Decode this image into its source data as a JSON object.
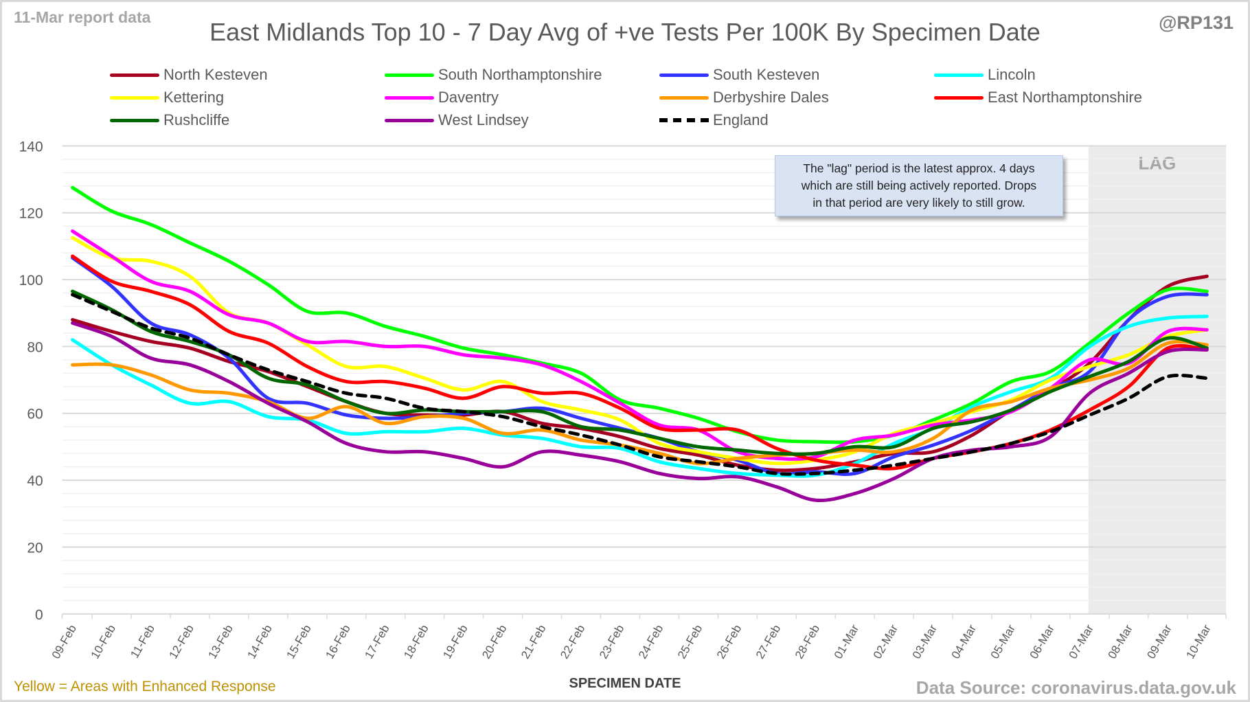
{
  "header": {
    "report_date": "11-Mar report data",
    "title": "East Midlands Top 10 - 7 Day Avg of +ve Tests Per 100K By Specimen Date",
    "handle": "@RP131"
  },
  "note": {
    "lines": [
      "The \"lag\" period is the latest approx. 4 days",
      "which are still being actively reported.  Drops",
      "in that period are very likely to still grow."
    ]
  },
  "footer": {
    "left": "Yellow = Areas with Enhanced Response",
    "center": "SPECIMEN DATE",
    "right": "Data Source: coronavirus.data.gov.uk"
  },
  "chart_data": {
    "type": "line",
    "title": "East Midlands Top 10 - 7 Day Avg of +ve Tests Per 100K By Specimen Date",
    "xlabel": "SPECIMEN DATE",
    "ylabel": "",
    "ylim": [
      0,
      140
    ],
    "yticks": [
      0,
      20,
      40,
      60,
      80,
      100,
      120,
      140
    ],
    "grid": true,
    "legend_position": "top",
    "lag_region": {
      "label": "LAG",
      "from": "07-Mar",
      "to": "10-Mar"
    },
    "x": [
      "09-Feb",
      "10-Feb",
      "11-Feb",
      "12-Feb",
      "13-Feb",
      "14-Feb",
      "15-Feb",
      "16-Feb",
      "17-Feb",
      "18-Feb",
      "19-Feb",
      "20-Feb",
      "21-Feb",
      "22-Feb",
      "23-Feb",
      "24-Feb",
      "25-Feb",
      "26-Feb",
      "27-Feb",
      "28-Feb",
      "01-Mar",
      "02-Mar",
      "03-Mar",
      "04-Mar",
      "05-Mar",
      "06-Mar",
      "07-Mar",
      "08-Mar",
      "09-Mar",
      "10-Mar"
    ],
    "series": [
      {
        "name": "North Kesteven",
        "color": "#a50021",
        "dashed": false,
        "values": [
          88,
          84.5,
          81.5,
          79.5,
          75.5,
          72.5,
          68,
          63.5,
          60,
          59.5,
          59.5,
          60.5,
          57,
          55.5,
          53,
          49.5,
          47.5,
          44.5,
          43,
          43.5,
          45.5,
          48,
          48.5,
          53.5,
          61,
          67,
          75,
          88,
          98,
          101
        ]
      },
      {
        "name": "South Northamptonshire",
        "color": "#00ff00",
        "dashed": false,
        "values": [
          127.5,
          120.5,
          116.5,
          111,
          105.5,
          98.5,
          90.5,
          90,
          86,
          83,
          79.5,
          77.5,
          75,
          72,
          64,
          61.5,
          58.5,
          54.5,
          52,
          51.5,
          51.5,
          53.5,
          58,
          63,
          69.5,
          72.5,
          81,
          90,
          97,
          96.5
        ]
      },
      {
        "name": "South Kesteven",
        "color": "#3333ff",
        "dashed": false,
        "values": [
          106.5,
          98,
          87,
          83.5,
          76.5,
          64.5,
          63,
          59.5,
          58.5,
          59,
          60,
          60.5,
          61.5,
          58.5,
          55.5,
          52.5,
          48.5,
          46,
          42,
          42.5,
          42,
          47,
          50.5,
          55,
          61,
          67.5,
          72.5,
          88,
          95,
          95.5
        ]
      },
      {
        "name": "Lincoln",
        "color": "#00ffff",
        "dashed": false,
        "values": [
          82,
          74.5,
          68.5,
          63,
          63.5,
          59,
          58,
          54,
          54.5,
          54.5,
          55.5,
          53.5,
          52.5,
          50,
          49.5,
          45.5,
          43.5,
          42,
          41.5,
          41.5,
          45,
          51,
          55.5,
          62,
          66.5,
          70.5,
          80,
          86,
          88.5,
          89
        ]
      },
      {
        "name": "Kettering",
        "color": "#ffff00",
        "dashed": false,
        "values": [
          112.5,
          106.5,
          105.5,
          101,
          90,
          87,
          80.5,
          74,
          74,
          70.5,
          67,
          69.5,
          63.5,
          61,
          58,
          51,
          48.5,
          46.5,
          45,
          46,
          48.5,
          54,
          57,
          60.5,
          64,
          70,
          74,
          77.5,
          83,
          85
        ]
      },
      {
        "name": "Daventry",
        "color": "#ff00ff",
        "dashed": false,
        "values": [
          114.5,
          107,
          99.5,
          96.5,
          89.5,
          87,
          81.5,
          81.5,
          80,
          80,
          77.5,
          76.5,
          74.5,
          69.5,
          63,
          56.5,
          55,
          48.5,
          46.5,
          47,
          52,
          53.5,
          56.5,
          58,
          60.5,
          67.5,
          76,
          75,
          84.5,
          85
        ]
      },
      {
        "name": "Derbyshire Dales",
        "color": "#ff9900",
        "dashed": false,
        "values": [
          74.5,
          74.5,
          71.5,
          67,
          66,
          63.5,
          58.5,
          62,
          57,
          59,
          58.5,
          54,
          55,
          52,
          50.5,
          48,
          45,
          46.5,
          47.5,
          48,
          49,
          48.5,
          52.5,
          61,
          63.5,
          67.5,
          70,
          73.5,
          81,
          80.5
        ]
      },
      {
        "name": "East Northamptonshire",
        "color": "#ff0000",
        "dashed": false,
        "values": [
          107,
          99.5,
          96.5,
          92.5,
          84.5,
          81,
          74,
          69.5,
          69.5,
          67.5,
          64.5,
          68,
          66,
          66,
          61.5,
          55.5,
          55,
          55,
          49.5,
          46,
          44.5,
          43.5,
          46.5,
          48.5,
          51,
          55,
          61,
          68,
          79.5,
          79
        ]
      },
      {
        "name": "Rushcliffe",
        "color": "#006600",
        "dashed": false,
        "values": [
          96.5,
          91,
          84.5,
          81.5,
          77.5,
          70.5,
          68.5,
          63.5,
          60,
          61,
          60.5,
          60.5,
          60.5,
          56,
          55,
          52.5,
          50,
          49,
          48,
          48,
          50,
          50,
          55.5,
          57.5,
          61,
          66.5,
          71,
          75.5,
          82.5,
          79.5
        ]
      },
      {
        "name": "West Lindsey",
        "color": "#990099",
        "dashed": false,
        "values": [
          87,
          83,
          76.5,
          74.5,
          69.5,
          63,
          57.5,
          51,
          48.5,
          48.5,
          46.5,
          44,
          48.5,
          47.5,
          45.5,
          42,
          40.5,
          41,
          38,
          34,
          36,
          40.5,
          46.5,
          49,
          50,
          53,
          66,
          72,
          78.5,
          79
        ]
      },
      {
        "name": "England",
        "color": "#000000",
        "dashed": true,
        "values": [
          95.5,
          90.5,
          85.5,
          82.5,
          77.5,
          73,
          69.5,
          66,
          64.5,
          61.5,
          60.5,
          59,
          56,
          53.5,
          50.5,
          47,
          45.5,
          44,
          42,
          42,
          43,
          44.5,
          46.5,
          48.5,
          51,
          54.5,
          59.5,
          64.5,
          71,
          70.5
        ]
      }
    ]
  }
}
